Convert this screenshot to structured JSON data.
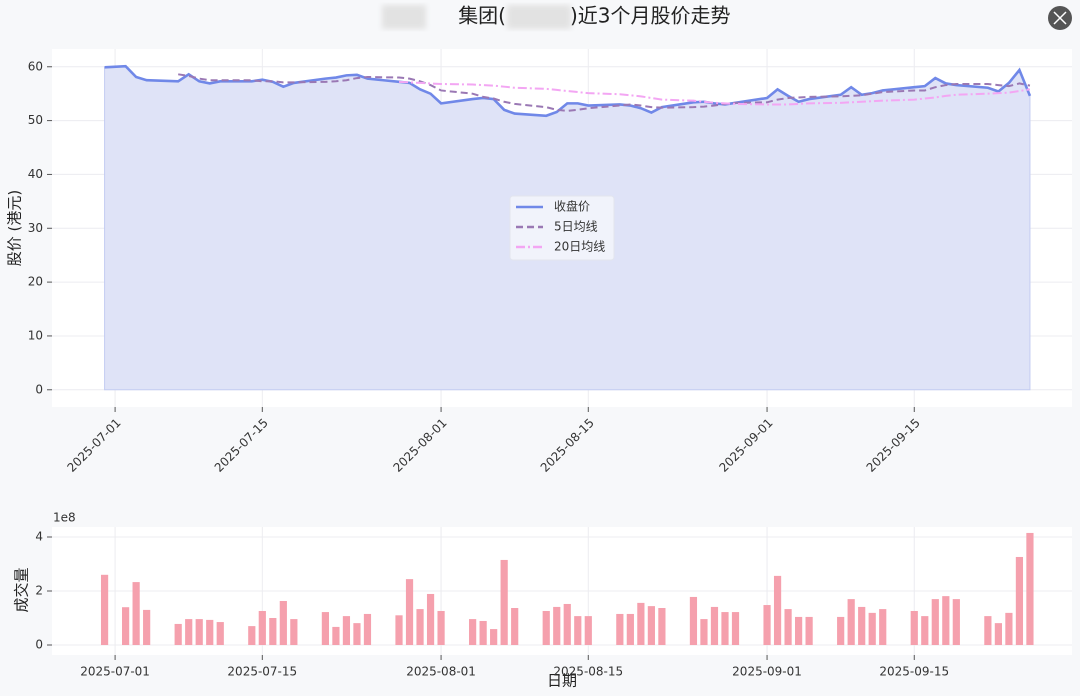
{
  "chart_data": [
    {
      "type": "line",
      "title": [
        "集团(",
        ")近3个月股价走势"
      ],
      "ylabel": "股价 (港元)",
      "x": [
        "2025-06-30",
        "2025-07-02",
        "2025-07-03",
        "2025-07-04",
        "2025-07-07",
        "2025-07-08",
        "2025-07-09",
        "2025-07-10",
        "2025-07-11",
        "2025-07-14",
        "2025-07-15",
        "2025-07-16",
        "2025-07-17",
        "2025-07-18",
        "2025-07-21",
        "2025-07-22",
        "2025-07-23",
        "2025-07-24",
        "2025-07-25",
        "2025-07-28",
        "2025-07-29",
        "2025-07-30",
        "2025-07-31",
        "2025-08-01",
        "2025-08-04",
        "2025-08-05",
        "2025-08-06",
        "2025-08-07",
        "2025-08-08",
        "2025-08-11",
        "2025-08-12",
        "2025-08-13",
        "2025-08-14",
        "2025-08-15",
        "2025-08-18",
        "2025-08-19",
        "2025-08-20",
        "2025-08-21",
        "2025-08-22",
        "2025-08-25",
        "2025-08-26",
        "2025-08-27",
        "2025-08-28",
        "2025-08-29",
        "2025-09-01",
        "2025-09-02",
        "2025-09-03",
        "2025-09-04",
        "2025-09-05",
        "2025-09-08",
        "2025-09-09",
        "2025-09-10",
        "2025-09-11",
        "2025-09-12",
        "2025-09-15",
        "2025-09-16",
        "2025-09-17",
        "2025-09-18",
        "2025-09-19",
        "2025-09-22",
        "2025-09-23",
        "2025-09-24",
        "2025-09-25",
        "2025-09-26"
      ],
      "series": [
        {
          "name": "收盘价",
          "color": "#7088e8",
          "linestyle": "solid",
          "fill_color": "#dfe3f7",
          "values": [
            59.9,
            60.1,
            58.1,
            57.5,
            57.3,
            58.6,
            57.3,
            56.9,
            57.3,
            57.3,
            57.6,
            57.2,
            56.3,
            57.0,
            57.8,
            58.0,
            58.4,
            58.5,
            57.8,
            57.2,
            57.0,
            55.8,
            55.0,
            53.2,
            54.0,
            54.2,
            54.0,
            52.0,
            51.3,
            50.9,
            51.6,
            53.2,
            53.2,
            52.8,
            53.0,
            52.8,
            52.3,
            51.5,
            52.5,
            53.4,
            53.5,
            53.2,
            53.0,
            53.3,
            54.2,
            55.8,
            54.6,
            53.5,
            54.0,
            54.8,
            56.2,
            54.8,
            55.1,
            55.6,
            56.2,
            56.4,
            57.9,
            56.9,
            56.6,
            56.1,
            55.4,
            57.0,
            59.4,
            54.6
          ]
        },
        {
          "name": "5日均线",
          "color": "#9a78b4",
          "linestyle": "dashed",
          "values": [
            null,
            null,
            null,
            null,
            58.6,
            58.3,
            57.8,
            57.5,
            57.5,
            57.5,
            57.3,
            57.3,
            57.1,
            57.1,
            57.2,
            57.3,
            57.5,
            57.9,
            58.1,
            58.0,
            57.8,
            57.3,
            56.6,
            55.6,
            55.0,
            54.4,
            54.1,
            53.5,
            53.1,
            52.5,
            52.0,
            51.8,
            52.0,
            52.3,
            52.8,
            53.0,
            52.8,
            52.5,
            52.4,
            52.5,
            52.6,
            52.8,
            53.1,
            53.3,
            53.4,
            53.9,
            54.2,
            54.3,
            54.4,
            54.5,
            54.6,
            54.7,
            55.0,
            55.3,
            55.6,
            55.6,
            56.2,
            56.6,
            56.8,
            56.8,
            56.6,
            56.4,
            56.9,
            56.5
          ]
        },
        {
          "name": "20日均线",
          "color": "#f3a6f3",
          "linestyle": "dashdot",
          "values": [
            null,
            null,
            null,
            null,
            null,
            null,
            null,
            null,
            null,
            null,
            null,
            null,
            null,
            null,
            null,
            null,
            null,
            null,
            null,
            57.2,
            57.1,
            57.0,
            56.9,
            56.8,
            56.7,
            56.6,
            56.5,
            56.3,
            56.1,
            55.9,
            55.7,
            55.5,
            55.3,
            55.1,
            54.9,
            54.7,
            54.5,
            54.2,
            53.9,
            53.7,
            53.5,
            53.3,
            53.2,
            53.1,
            53.0,
            53.0,
            53.0,
            53.1,
            53.2,
            53.3,
            53.4,
            53.5,
            53.6,
            53.7,
            53.9,
            54.1,
            54.3,
            54.6,
            54.8,
            55.0,
            55.1,
            55.2,
            55.5,
            55.8
          ]
        }
      ],
      "xlim": [
        "2025-06-25",
        "2025-09-30"
      ],
      "xticks": [
        "2025-07-01",
        "2025-07-15",
        "2025-08-01",
        "2025-08-15",
        "2025-09-01",
        "2025-09-15"
      ],
      "ylim": [
        -3.2,
        63.3
      ],
      "yticks": [
        0,
        10,
        20,
        30,
        40,
        50,
        60
      ],
      "grid": true,
      "legend": "center",
      "xtick_rotation": -45
    },
    {
      "type": "bar",
      "ylabel": "成交量",
      "xlabel": "日期",
      "offset_text": "1e8",
      "color": "#f5a0ad",
      "x": [
        "2025-06-30",
        "2025-07-02",
        "2025-07-03",
        "2025-07-04",
        "2025-07-07",
        "2025-07-08",
        "2025-07-09",
        "2025-07-10",
        "2025-07-11",
        "2025-07-14",
        "2025-07-15",
        "2025-07-16",
        "2025-07-17",
        "2025-07-18",
        "2025-07-21",
        "2025-07-22",
        "2025-07-23",
        "2025-07-24",
        "2025-07-25",
        "2025-07-28",
        "2025-07-29",
        "2025-07-30",
        "2025-07-31",
        "2025-08-01",
        "2025-08-04",
        "2025-08-05",
        "2025-08-06",
        "2025-08-07",
        "2025-08-08",
        "2025-08-11",
        "2025-08-12",
        "2025-08-13",
        "2025-08-14",
        "2025-08-15",
        "2025-08-18",
        "2025-08-19",
        "2025-08-20",
        "2025-08-21",
        "2025-08-22",
        "2025-08-25",
        "2025-08-26",
        "2025-08-27",
        "2025-08-28",
        "2025-08-29",
        "2025-09-01",
        "2025-09-02",
        "2025-09-03",
        "2025-09-04",
        "2025-09-05",
        "2025-09-08",
        "2025-09-09",
        "2025-09-10",
        "2025-09-11",
        "2025-09-12",
        "2025-09-15",
        "2025-09-16",
        "2025-09-17",
        "2025-09-18",
        "2025-09-19",
        "2025-09-22",
        "2025-09-23",
        "2025-09-24",
        "2025-09-25",
        "2025-09-26"
      ],
      "values": [
        2.6,
        1.4,
        2.33,
        1.3,
        0.78,
        0.96,
        0.96,
        0.93,
        0.85,
        0.7,
        1.26,
        1.0,
        1.63,
        0.96,
        1.22,
        0.67,
        1.07,
        0.81,
        1.15,
        1.1,
        2.44,
        1.33,
        1.89,
        1.26,
        0.96,
        0.89,
        0.59,
        3.15,
        1.37,
        1.26,
        1.41,
        1.52,
        1.07,
        1.07,
        1.15,
        1.15,
        1.56,
        1.44,
        1.37,
        1.78,
        0.96,
        1.41,
        1.22,
        1.22,
        1.48,
        2.56,
        1.33,
        1.04,
        1.04,
        1.04,
        1.7,
        1.41,
        1.19,
        1.33,
        1.26,
        1.07,
        1.7,
        1.81,
        1.7,
        1.07,
        0.81,
        1.19,
        3.26,
        4.15
      ],
      "xlim": [
        "2025-06-25",
        "2025-09-30"
      ],
      "xticks": [
        "2025-07-01",
        "2025-07-15",
        "2025-08-01",
        "2025-08-15",
        "2025-09-01",
        "2025-09-15"
      ],
      "ylim": [
        -0.37,
        4.37
      ],
      "yticks": [
        0,
        2,
        4
      ],
      "grid": true
    }
  ]
}
